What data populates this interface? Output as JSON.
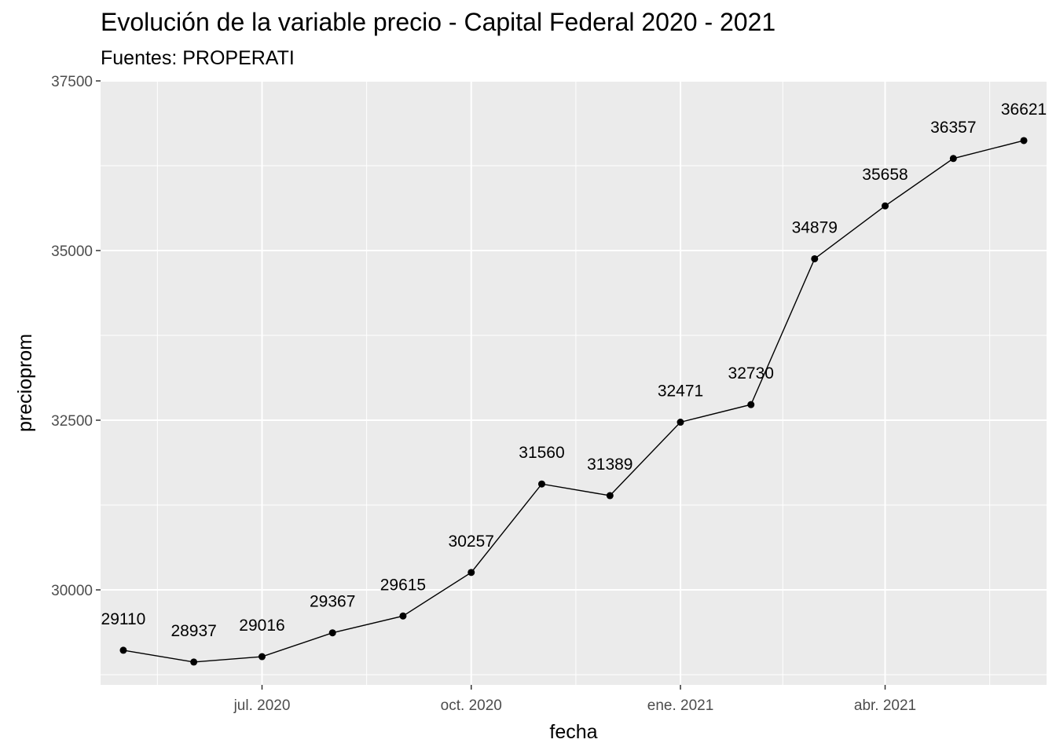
{
  "chart_data": {
    "type": "line",
    "title": "Evolución de la variable precio - Capital Federal 2020 - 2021",
    "subtitle": "Fuentes: PROPERATI",
    "xlabel": "fecha",
    "ylabel": "precioprom",
    "x": [
      "2020-05-01",
      "2020-06-01",
      "2020-07-01",
      "2020-08-01",
      "2020-09-01",
      "2020-10-01",
      "2020-11-01",
      "2020-12-01",
      "2021-01-01",
      "2021-02-01",
      "2021-03-01",
      "2021-04-01",
      "2021-05-01",
      "2021-06-01"
    ],
    "values": [
      29110,
      28937,
      29016,
      29367,
      29615,
      30257,
      31560,
      31389,
      32471,
      32730,
      34879,
      35658,
      36357,
      36621
    ],
    "data_labels": [
      "29110",
      "28937",
      "29016",
      "29367",
      "29615",
      "30257",
      "31560",
      "31389",
      "32471",
      "32730",
      "34879",
      "35658",
      "36357",
      "36621"
    ],
    "x_ticks": [
      {
        "date": "2020-07-01",
        "label": "jul. 2020"
      },
      {
        "date": "2020-10-01",
        "label": "oct. 2020"
      },
      {
        "date": "2021-01-01",
        "label": "ene. 2021"
      },
      {
        "date": "2021-04-01",
        "label": "abr. 2021"
      }
    ],
    "y_ticks": [
      30000,
      32500,
      35000,
      37500
    ],
    "y_tick_labels": [
      "30000",
      "32500",
      "35000",
      "37500"
    ],
    "ylim": [
      28600,
      37500
    ],
    "xlim": [
      "2020-04-21",
      "2021-06-11"
    ],
    "grid": true,
    "panel_background": "#EBEBEB",
    "grid_color": "#FFFFFF",
    "line_color": "#000000",
    "point_color": "#000000"
  }
}
